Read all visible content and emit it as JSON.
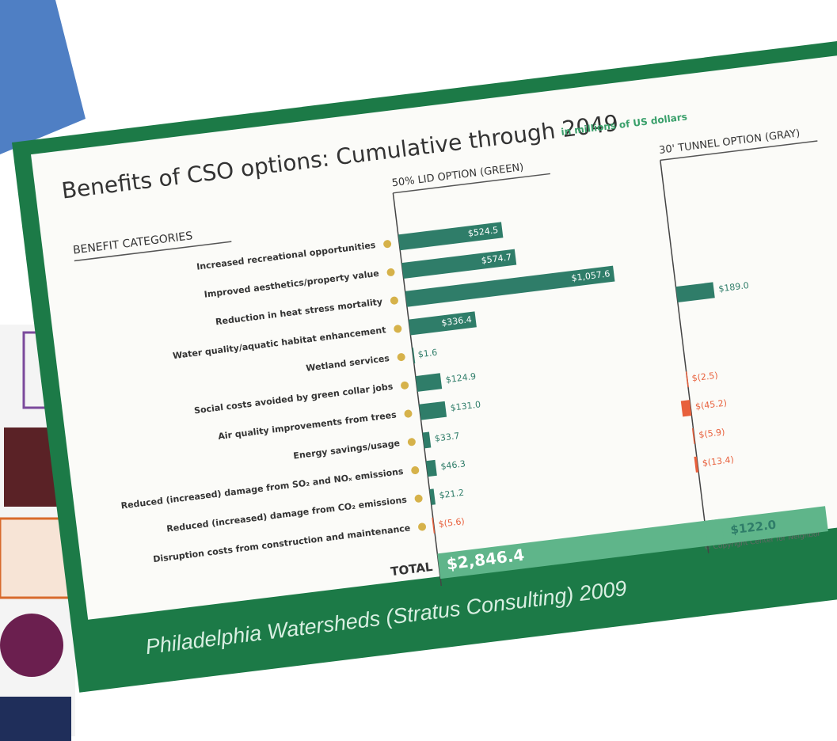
{
  "chart_data": {
    "type": "bar",
    "title": "Benefits of CSO options: Cumulative through 2049",
    "subtitle": "in millions of US dollars",
    "category_header": "BENEFIT CATEGORIES",
    "categories": [
      "Increased recreational opportunities",
      "Improved aesthetics/property value",
      "Reduction in heat stress mortality",
      "Water quality/aquatic habitat enhancement",
      "Wetland services",
      "Social costs avoided by green collar jobs",
      "Air quality improvements from trees",
      "Energy savings/usage",
      "Reduced (increased) damage from SO₂ and NOₓ emissions",
      "Reduced (increased) damage from CO₂ emissions",
      "Disruption costs from construction and maintenance"
    ],
    "series": [
      {
        "name": "50% LID OPTION (GREEN)",
        "color": "#2f7d69",
        "negative_color": "#e8603c",
        "values": [
          524.5,
          574.7,
          1057.6,
          336.4,
          1.6,
          124.9,
          131.0,
          33.7,
          46.3,
          21.2,
          -5.6
        ],
        "value_labels": [
          "$524.5",
          "$574.7",
          "$1,057.6",
          "$336.4",
          "$1.6",
          "$124.9",
          "$131.0",
          "$33.7",
          "$46.3",
          "$21.2",
          "$(5.6)"
        ]
      },
      {
        "name": "30' TUNNEL OPTION (GRAY)",
        "color": "#2f7d69",
        "negative_color": "#e8603c",
        "values": [
          null,
          null,
          null,
          189.0,
          null,
          null,
          -2.5,
          -45.2,
          -5.9,
          -13.4,
          null
        ],
        "value_labels": [
          null,
          null,
          null,
          "$189.0",
          null,
          null,
          "$(2.5)",
          "$(45.2)",
          "$(5.9)",
          "$(13.4)",
          null
        ]
      }
    ],
    "xlim": [
      -100,
      1100
    ],
    "total_label": "TOTAL",
    "totals": [
      2846.4,
      122.0
    ],
    "total_labels": [
      "$2,846.4",
      "$122.0"
    ],
    "total_color": "#5fb58a",
    "total_xlim": [
      0,
      3000
    ],
    "footer": "Philadelphia Watersheds (Stratus Consulting) 2009",
    "copyright": "© Copyright Center for Neighbor"
  }
}
